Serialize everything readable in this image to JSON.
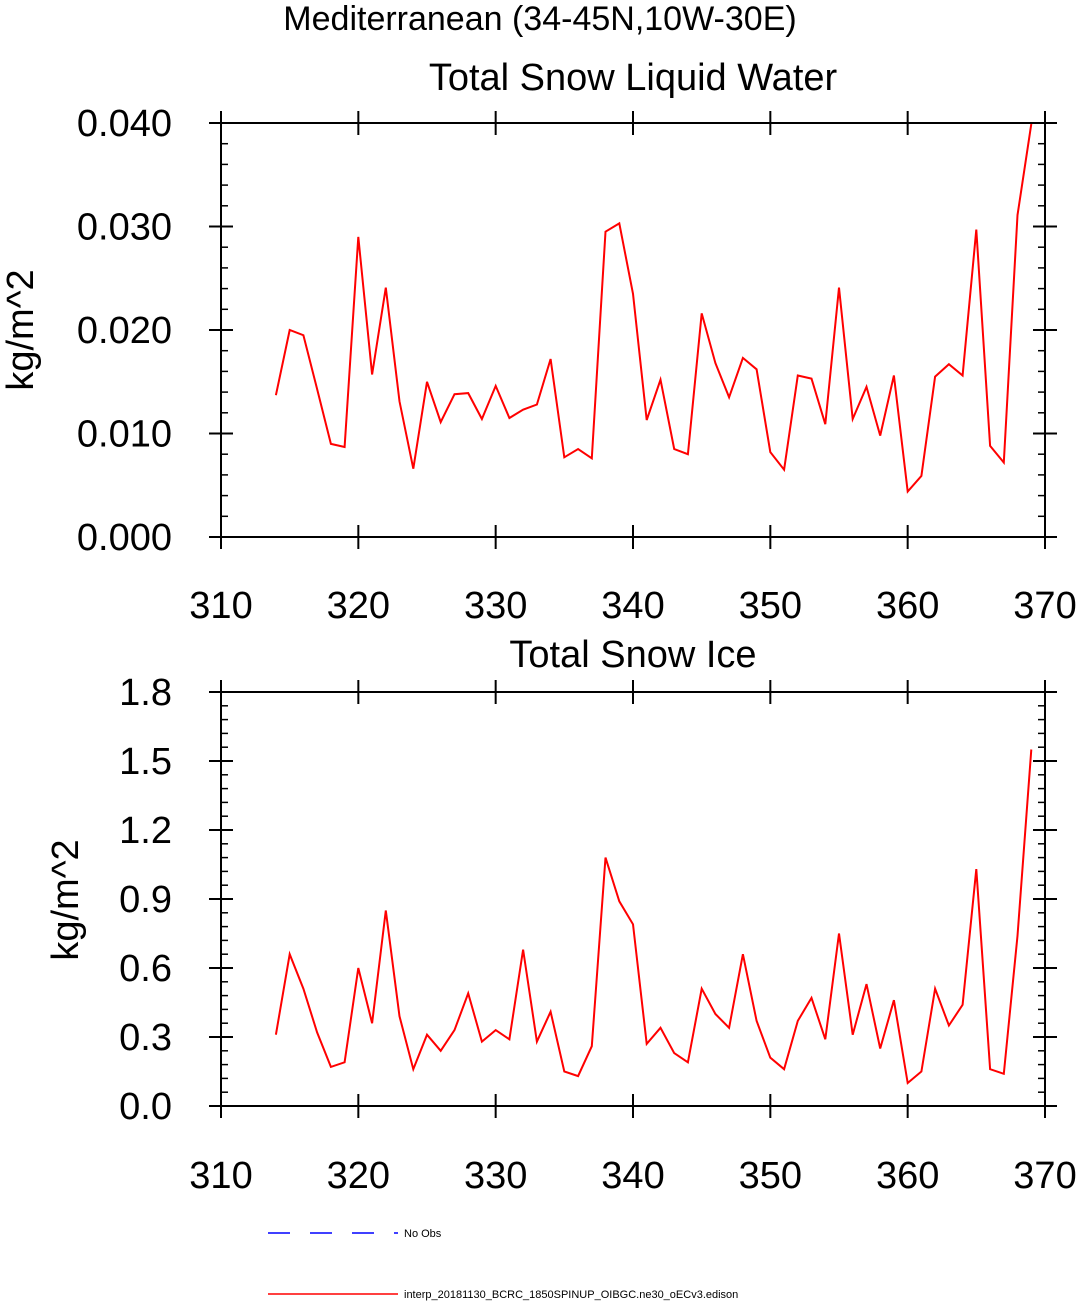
{
  "figure_title": "Mediterranean (34-45N,10W-30E)",
  "colors": {
    "model": "#ff0000",
    "obs": "#0000ff",
    "axis": "#000000"
  },
  "legend": [
    {
      "label": "No Obs",
      "style": "dashed",
      "color": "#0000ff"
    },
    {
      "label": "interp_20181130_BCRC_1850SPINUP_OIBGC.ne30_oECv3.edison",
      "style": "solid",
      "color": "#ff0000"
    }
  ],
  "chart_data": [
    {
      "type": "line",
      "title": "Total Snow Liquid Water",
      "xlabel": "",
      "ylabel": "kg/m^2",
      "xlim": [
        310,
        370
      ],
      "ylim": [
        0,
        0.04
      ],
      "xticks": [
        310,
        320,
        330,
        340,
        350,
        360,
        370
      ],
      "xtick_labels": [
        "310",
        "320",
        "330",
        "340",
        "350",
        "360",
        "370"
      ],
      "yticks": [
        0,
        0.01,
        0.02,
        0.03,
        0.04
      ],
      "ytick_labels": [
        "0.000",
        "0.010",
        "0.020",
        "0.030",
        "0.040"
      ],
      "yminor_step": 0.002,
      "series": [
        {
          "name": "interp_20181130_BCRC_1850SPINUP_OIBGC.ne30_oECv3.edison",
          "x": [
            314,
            315,
            316,
            317,
            318,
            319,
            320,
            321,
            322,
            323,
            324,
            325,
            326,
            327,
            328,
            329,
            330,
            331,
            332,
            333,
            334,
            335,
            336,
            337,
            338,
            339,
            340,
            341,
            342,
            343,
            344,
            345,
            346,
            347,
            348,
            349,
            350,
            351,
            352,
            353,
            354,
            355,
            356,
            357,
            358,
            359,
            360,
            361,
            362,
            363,
            364,
            365,
            366,
            367,
            368,
            369
          ],
          "values": [
            0.0137,
            0.02,
            0.0195,
            0.0143,
            0.009,
            0.0087,
            0.029,
            0.0157,
            0.0241,
            0.0131,
            0.0066,
            0.015,
            0.0111,
            0.0138,
            0.0139,
            0.0114,
            0.0146,
            0.0115,
            0.0123,
            0.0128,
            0.0172,
            0.0077,
            0.0085,
            0.0076,
            0.0295,
            0.0303,
            0.0235,
            0.0113,
            0.0152,
            0.0085,
            0.008,
            0.0216,
            0.0168,
            0.0135,
            0.0173,
            0.0162,
            0.0082,
            0.0065,
            0.0156,
            0.0153,
            0.0109,
            0.0241,
            0.0114,
            0.0145,
            0.0098,
            0.0156,
            0.0044,
            0.0059,
            0.0155,
            0.0167,
            0.0156,
            0.0297,
            0.0088,
            0.0072,
            0.0311,
            0.0399
          ]
        }
      ]
    },
    {
      "type": "line",
      "title": "Total Snow Ice",
      "xlabel": "",
      "ylabel": "kg/m^2",
      "xlim": [
        310,
        370
      ],
      "ylim": [
        0,
        1.8
      ],
      "xticks": [
        310,
        320,
        330,
        340,
        350,
        360,
        370
      ],
      "xtick_labels": [
        "310",
        "320",
        "330",
        "340",
        "350",
        "360",
        "370"
      ],
      "yticks": [
        0,
        0.3,
        0.6,
        0.9,
        1.2,
        1.5,
        1.8
      ],
      "ytick_labels": [
        "0.0",
        "0.3",
        "0.6",
        "0.9",
        "1.2",
        "1.5",
        "1.8"
      ],
      "yminor_step": 0.06,
      "series": [
        {
          "name": "interp_20181130_BCRC_1850SPINUP_OIBGC.ne30_oECv3.edison",
          "x": [
            314,
            315,
            316,
            317,
            318,
            319,
            320,
            321,
            322,
            323,
            324,
            325,
            326,
            327,
            328,
            329,
            330,
            331,
            332,
            333,
            334,
            335,
            336,
            337,
            338,
            339,
            340,
            341,
            342,
            343,
            344,
            345,
            346,
            347,
            348,
            349,
            350,
            351,
            352,
            353,
            354,
            355,
            356,
            357,
            358,
            359,
            360,
            361,
            362,
            363,
            364,
            365,
            366,
            367,
            368,
            369
          ],
          "values": [
            0.31,
            0.66,
            0.51,
            0.32,
            0.17,
            0.19,
            0.6,
            0.36,
            0.85,
            0.39,
            0.16,
            0.31,
            0.24,
            0.33,
            0.49,
            0.28,
            0.33,
            0.29,
            0.68,
            0.28,
            0.41,
            0.15,
            0.13,
            0.26,
            1.08,
            0.89,
            0.79,
            0.27,
            0.34,
            0.23,
            0.19,
            0.51,
            0.4,
            0.34,
            0.66,
            0.37,
            0.21,
            0.16,
            0.37,
            0.47,
            0.29,
            0.75,
            0.31,
            0.53,
            0.25,
            0.46,
            0.1,
            0.15,
            0.51,
            0.35,
            0.44,
            1.03,
            0.16,
            0.14,
            0.74,
            1.55
          ]
        }
      ]
    }
  ]
}
